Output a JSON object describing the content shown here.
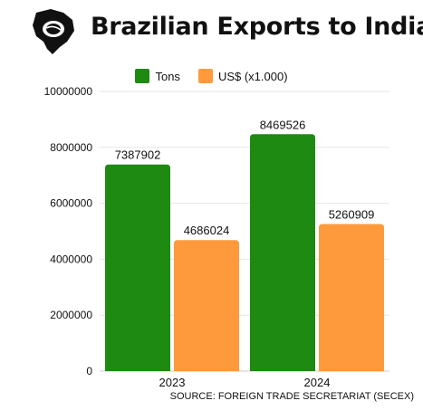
{
  "title": "Brazilian Exports to India",
  "source": "SOURCE: FOREIGN TRADE SECRETARIAT (SECEX)",
  "colors": {
    "tons": "#1e8a12",
    "usd": "#ff9a3c"
  },
  "chart_data": {
    "type": "bar",
    "categories": [
      "2023",
      "2024"
    ],
    "series": [
      {
        "name": "Tons",
        "values": [
          7387902,
          8469526
        ]
      },
      {
        "name": "US$ (x1.000)",
        "values": [
          4686024,
          5260909
        ]
      }
    ],
    "ylim": [
      0,
      10000000
    ],
    "yticks": [
      "0",
      "2000000",
      "4000000",
      "6000000",
      "8000000",
      "10000000"
    ],
    "grid": true,
    "legend_position": "top"
  }
}
